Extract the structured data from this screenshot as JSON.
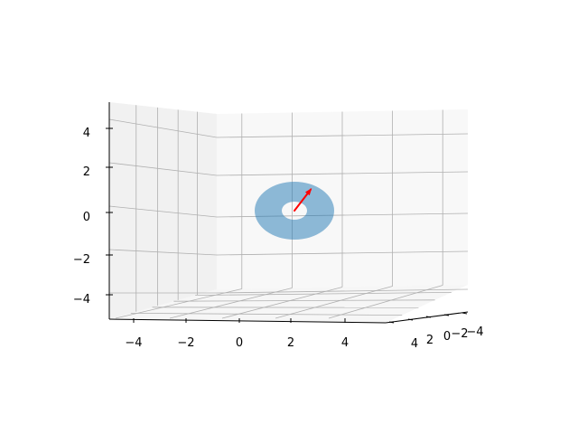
{
  "chart_data": {
    "type": "3d-surface",
    "title": "",
    "projection": "3d",
    "view": "near-front elevation, x axis horizontal, z axis vertical, y axis receding to the right",
    "axes": {
      "x": {
        "ticks": [
          -4,
          -2,
          0,
          2,
          4
        ],
        "tick_labels": [
          "−4",
          "−2",
          "0",
          "2",
          "4"
        ],
        "lim": [
          -5,
          5
        ]
      },
      "y": {
        "ticks": [
          4,
          2,
          0,
          -2,
          -4
        ],
        "tick_labels": [
          "4",
          "2",
          "0",
          "−2",
          "−4"
        ],
        "lim": [
          -5,
          5
        ]
      },
      "z": {
        "ticks": [
          4,
          2,
          0,
          -2,
          -4
        ],
        "tick_labels": [
          "4",
          "2",
          "0",
          "−2",
          "−4"
        ],
        "lim": [
          -5,
          5
        ]
      }
    },
    "grid": true,
    "series": [
      {
        "name": "annulus",
        "kind": "ring-surface",
        "center": [
          0,
          0,
          0
        ],
        "inner_radius": 0.5,
        "outer_radius": 2,
        "color": "#1f77b4",
        "alpha": 0.5
      },
      {
        "name": "normal-vector",
        "kind": "arrow",
        "start": [
          0,
          0,
          0
        ],
        "end": [
          1,
          0,
          1.3
        ],
        "color": "#ff0000"
      }
    ]
  }
}
